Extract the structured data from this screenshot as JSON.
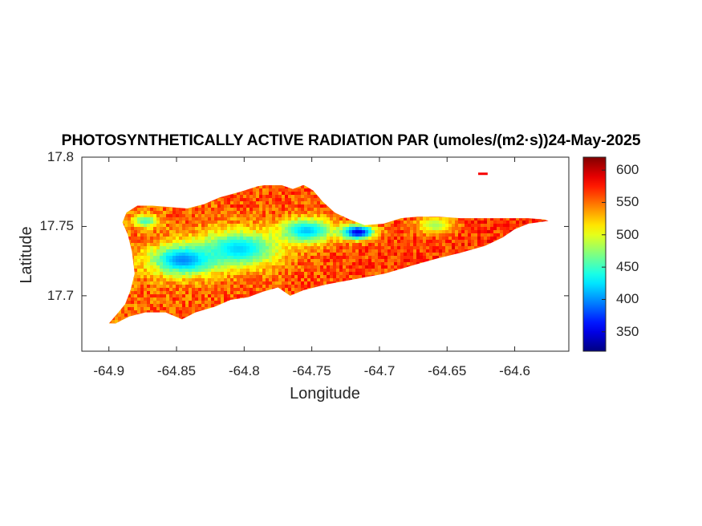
{
  "chart_data": {
    "type": "heatmap",
    "title": "PHOTOSYNTHETICALLY ACTIVE RADIATION PAR (umoles/(m2·s))24-May-2025",
    "xlabel": "Longitude",
    "ylabel": "Latitude",
    "xlim": [
      -64.92,
      -64.56
    ],
    "ylim": [
      17.66,
      17.8
    ],
    "xticks": [
      -64.9,
      -64.85,
      -64.8,
      -64.75,
      -64.7,
      -64.65,
      -64.6
    ],
    "xtick_labels": [
      "-64.9",
      "-64.85",
      "-64.8",
      "-64.75",
      "-64.7",
      "-64.65",
      "-64.6"
    ],
    "yticks": [
      17.7,
      17.75,
      17.8
    ],
    "ytick_labels": [
      "17.7",
      "17.75",
      "17.8"
    ],
    "colorbar": {
      "colormap": "jet",
      "clim": [
        320,
        620
      ],
      "ticks": [
        350,
        400,
        450,
        500,
        550,
        600
      ],
      "tick_labels": [
        "350",
        "400",
        "450",
        "500",
        "550",
        "600"
      ]
    },
    "outline": [
      [
        -64.9,
        17.68
      ],
      [
        -64.893,
        17.688
      ],
      [
        -64.888,
        17.694
      ],
      [
        -64.884,
        17.704
      ],
      [
        -64.881,
        17.716
      ],
      [
        -64.883,
        17.732
      ],
      [
        -64.886,
        17.744
      ],
      [
        -64.89,
        17.753
      ],
      [
        -64.887,
        17.76
      ],
      [
        -64.879,
        17.765
      ],
      [
        -64.868,
        17.765
      ],
      [
        -64.855,
        17.764
      ],
      [
        -64.842,
        17.763
      ],
      [
        -64.83,
        17.766
      ],
      [
        -64.818,
        17.771
      ],
      [
        -64.803,
        17.775
      ],
      [
        -64.79,
        17.779
      ],
      [
        -64.776,
        17.781
      ],
      [
        -64.764,
        17.777
      ],
      [
        -64.756,
        17.78
      ],
      [
        -64.749,
        17.776
      ],
      [
        -64.742,
        17.768
      ],
      [
        -64.733,
        17.76
      ],
      [
        -64.722,
        17.755
      ],
      [
        -64.711,
        17.751
      ],
      [
        -64.697,
        17.752
      ],
      [
        -64.684,
        17.756
      ],
      [
        -64.672,
        17.757
      ],
      [
        -64.656,
        17.757
      ],
      [
        -64.64,
        17.756
      ],
      [
        -64.625,
        17.756
      ],
      [
        -64.608,
        17.756
      ],
      [
        -64.59,
        17.756
      ],
      [
        -64.578,
        17.755
      ],
      [
        -64.575,
        17.754
      ],
      [
        -64.59,
        17.752
      ],
      [
        -64.6,
        17.748
      ],
      [
        -64.609,
        17.742
      ],
      [
        -64.622,
        17.736
      ],
      [
        -64.64,
        17.731
      ],
      [
        -64.657,
        17.727
      ],
      [
        -64.675,
        17.722
      ],
      [
        -64.696,
        17.716
      ],
      [
        -64.718,
        17.712
      ],
      [
        -64.74,
        17.708
      ],
      [
        -64.756,
        17.704
      ],
      [
        -64.766,
        17.7
      ],
      [
        -64.775,
        17.706
      ],
      [
        -64.786,
        17.703
      ],
      [
        -64.797,
        17.699
      ],
      [
        -64.81,
        17.697
      ],
      [
        -64.822,
        17.692
      ],
      [
        -64.836,
        17.688
      ],
      [
        -64.846,
        17.683
      ],
      [
        -64.858,
        17.688
      ],
      [
        -64.873,
        17.688
      ],
      [
        -64.885,
        17.685
      ],
      [
        -64.895,
        17.68
      ],
      [
        -64.9,
        17.68
      ]
    ],
    "islet": [
      [
        -64.627,
        17.788
      ],
      [
        -64.62,
        17.788
      ]
    ],
    "low_zones": [
      {
        "lon": -64.846,
        "lat": 17.727,
        "value": 395,
        "spread": 0.025
      },
      {
        "lon": -64.805,
        "lat": 17.735,
        "value": 420,
        "spread": 0.03
      },
      {
        "lon": -64.755,
        "lat": 17.748,
        "value": 415,
        "spread": 0.02
      },
      {
        "lon": -64.717,
        "lat": 17.747,
        "value": 350,
        "spread": 0.012
      },
      {
        "lon": -64.874,
        "lat": 17.755,
        "value": 450,
        "spread": 0.01
      },
      {
        "lon": -64.66,
        "lat": 17.752,
        "value": 480,
        "spread": 0.014
      }
    ]
  }
}
